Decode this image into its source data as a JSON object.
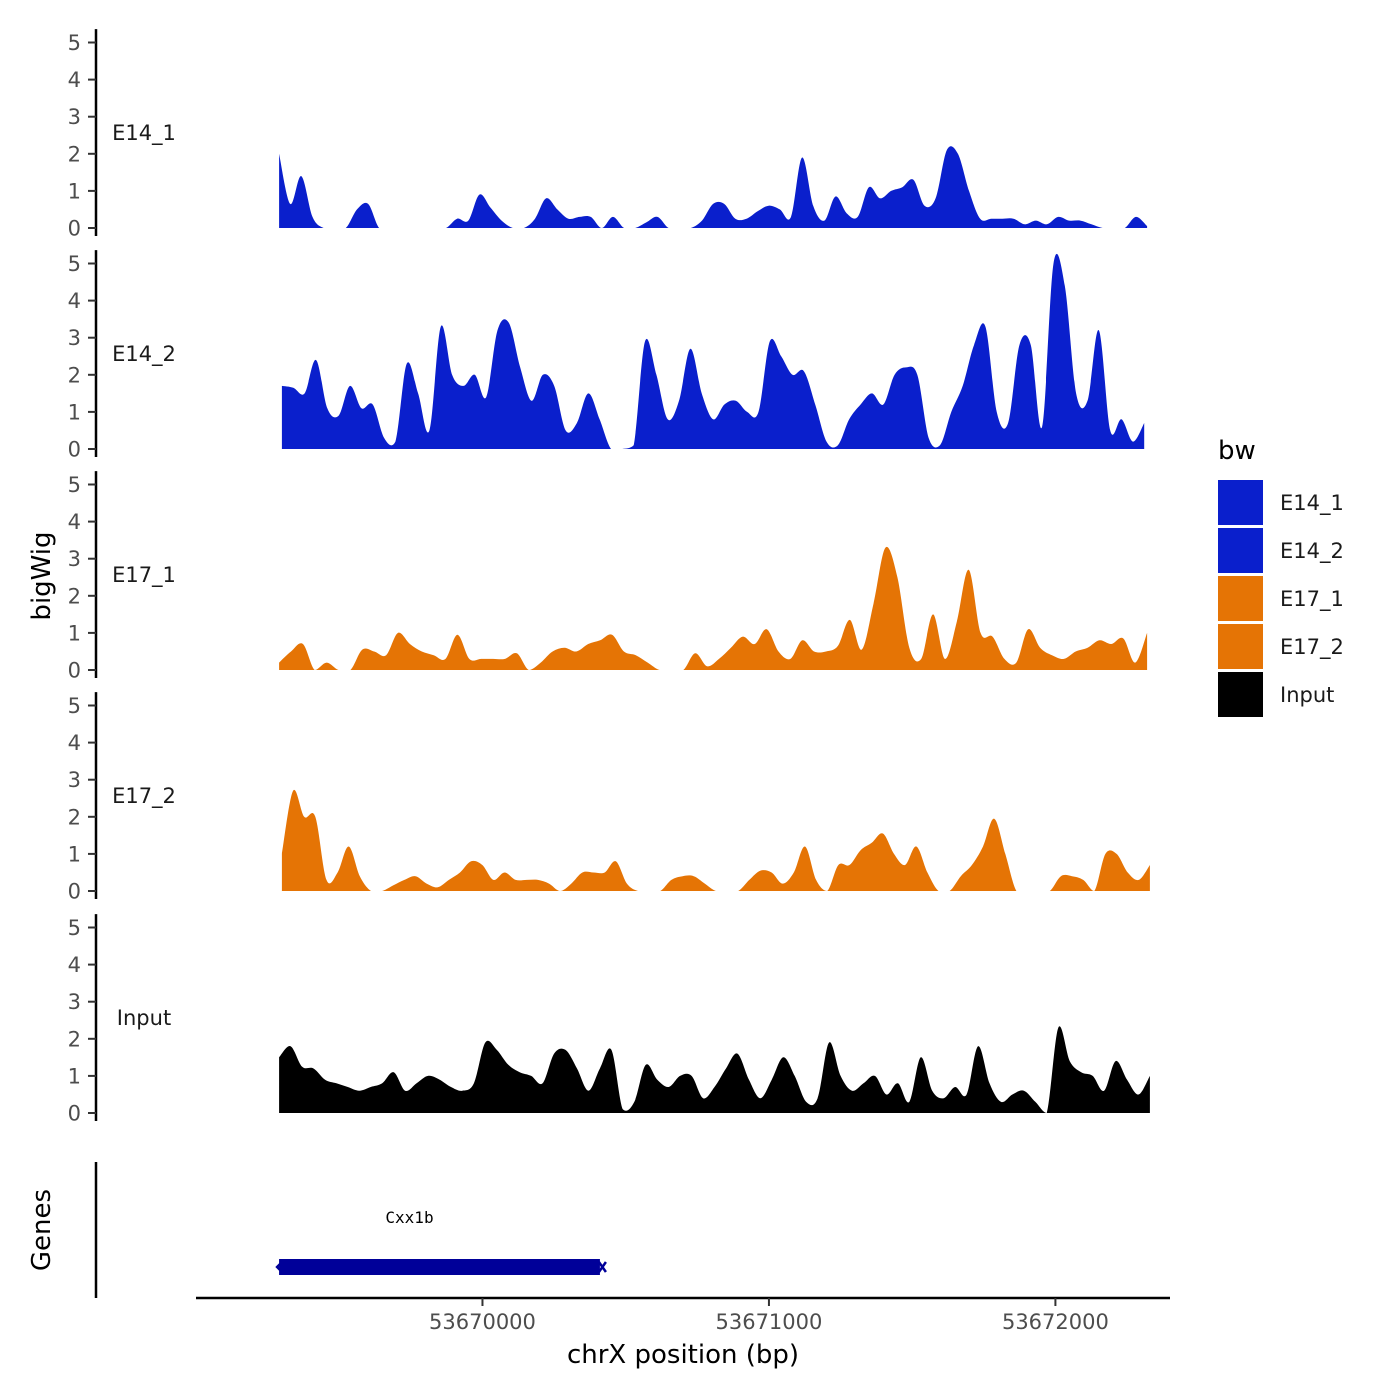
{
  "chart_data": {
    "type": "area",
    "y_axis_title": "bigWig",
    "x_axis_title": "chrX position (bp)",
    "genes_axis_title": "Genes",
    "y_ticks": [
      "0",
      "1",
      "2",
      "3",
      "4",
      "5"
    ],
    "ylim": [
      0,
      5.2
    ],
    "xlim": [
      53669000,
      53672400
    ],
    "x_ticks": [
      {
        "value": 53670000,
        "label": "53670000"
      },
      {
        "value": 53671000,
        "label": "53671000"
      },
      {
        "value": 53672000,
        "label": "53672000"
      }
    ],
    "legend": {
      "title": "bw",
      "entries": [
        {
          "label": "E14_1",
          "color": "#0A1FCC"
        },
        {
          "label": "E14_2",
          "color": "#0A1FCC"
        },
        {
          "label": "E17_1",
          "color": "#E57405"
        },
        {
          "label": "E17_2",
          "color": "#E57405"
        },
        {
          "label": "Input",
          "color": "#000000"
        }
      ]
    },
    "tracks": [
      {
        "name": "E14_1",
        "color": "#0A1FCC",
        "x_start": 53669290,
        "x_end": 53672320,
        "values": [
          2.0,
          0.65,
          1.4,
          0.3,
          0,
          0,
          0,
          0.5,
          0.65,
          0,
          0,
          0,
          0,
          0,
          0,
          0,
          0.25,
          0.2,
          0.9,
          0.55,
          0.2,
          0,
          0,
          0.25,
          0.8,
          0.5,
          0.25,
          0.3,
          0.3,
          0,
          0.3,
          0,
          0,
          0.15,
          0.3,
          0,
          0,
          0,
          0.2,
          0.65,
          0.65,
          0.25,
          0.25,
          0.45,
          0.6,
          0.5,
          0.3,
          1.9,
          0.6,
          0.2,
          0.85,
          0.4,
          0.3,
          1.1,
          0.8,
          1.0,
          1.1,
          1.3,
          0.6,
          0.8,
          2.1,
          2.0,
          1.0,
          0.25,
          0.25,
          0.25,
          0.25,
          0.1,
          0.2,
          0.1,
          0.3,
          0.2,
          0.2,
          0.1,
          0,
          0,
          0,
          0.3,
          0.05
        ]
      },
      {
        "name": "E14_2",
        "color": "#0A1FCC",
        "x_start": 53669300,
        "x_end": 53672310,
        "values": [
          1.7,
          1.65,
          1.5,
          2.4,
          1.1,
          0.9,
          1.7,
          1.1,
          1.2,
          0.3,
          0.2,
          2.3,
          1.5,
          0.5,
          3.3,
          2.0,
          1.7,
          2.0,
          1.4,
          3.2,
          3.4,
          2.2,
          1.3,
          2.0,
          1.7,
          0.5,
          0.7,
          1.5,
          0.8,
          0,
          0,
          0.1,
          2.9,
          2.0,
          0.8,
          1.3,
          2.7,
          1.5,
          0.8,
          1.2,
          1.3,
          1.0,
          1.0,
          2.9,
          2.5,
          2.0,
          2.1,
          1.2,
          0.2,
          0.1,
          0.8,
          1.2,
          1.5,
          1.2,
          2.0,
          2.2,
          2.0,
          0.3,
          0.1,
          1.0,
          1.7,
          2.8,
          3.3,
          1.0,
          0.7,
          2.8,
          2.8,
          0.6,
          5.0,
          4.4,
          1.5,
          1.3,
          3.2,
          0.5,
          0.8,
          0.2,
          0.7
        ]
      },
      {
        "name": "E17_1",
        "color": "#E57405",
        "x_start": 53669290,
        "x_end": 53672320,
        "values": [
          0.2,
          0.5,
          0.7,
          0,
          0.2,
          0,
          0,
          0.55,
          0.5,
          0.4,
          1.0,
          0.7,
          0.5,
          0.4,
          0.3,
          0.95,
          0.3,
          0.3,
          0.3,
          0.3,
          0.45,
          0,
          0.2,
          0.5,
          0.6,
          0.5,
          0.7,
          0.8,
          0.95,
          0.5,
          0.4,
          0.2,
          0,
          0,
          0,
          0.45,
          0.1,
          0.3,
          0.6,
          0.9,
          0.7,
          1.1,
          0.5,
          0.3,
          0.8,
          0.5,
          0.5,
          0.65,
          1.35,
          0.55,
          1.8,
          3.3,
          2.5,
          0.6,
          0.3,
          1.5,
          0.3,
          1.3,
          2.7,
          1.0,
          0.9,
          0.3,
          0.2,
          1.1,
          0.6,
          0.4,
          0.3,
          0.5,
          0.6,
          0.8,
          0.7,
          0.85,
          0.2,
          1.0
        ]
      },
      {
        "name": "E17_2",
        "color": "#E57405",
        "x_start": 53669300,
        "x_end": 53672330,
        "values": [
          1.0,
          2.7,
          2.0,
          2.0,
          0.3,
          0.5,
          1.2,
          0.4,
          0,
          0,
          0.15,
          0.3,
          0.4,
          0.2,
          0.1,
          0.3,
          0.5,
          0.8,
          0.7,
          0.3,
          0.5,
          0.3,
          0.3,
          0.3,
          0.2,
          0,
          0.2,
          0.5,
          0.5,
          0.5,
          0.8,
          0.2,
          0,
          0,
          0,
          0.3,
          0.4,
          0.4,
          0.2,
          0,
          0,
          0,
          0.3,
          0.55,
          0.5,
          0.2,
          0.5,
          1.2,
          0.3,
          0,
          0.7,
          0.7,
          1.1,
          1.3,
          1.55,
          1.0,
          0.7,
          1.2,
          0.5,
          0,
          0,
          0.4,
          0.7,
          1.2,
          1.95,
          1.0,
          0,
          0,
          0,
          0,
          0.4,
          0.4,
          0.3,
          0,
          1.0,
          1.0,
          0.5,
          0.3,
          0.7
        ]
      },
      {
        "name": "Input",
        "color": "#000000",
        "x_start": 53669290,
        "x_end": 53672330,
        "values": [
          1.5,
          1.8,
          1.25,
          1.2,
          0.9,
          0.8,
          0.7,
          0.6,
          0.7,
          0.8,
          1.1,
          0.6,
          0.8,
          1.0,
          0.9,
          0.7,
          0.6,
          0.8,
          1.9,
          1.7,
          1.3,
          1.1,
          1.0,
          0.8,
          1.6,
          1.7,
          1.2,
          0.6,
          1.2,
          1.7,
          0.1,
          0.3,
          1.3,
          0.9,
          0.7,
          1.0,
          1.0,
          0.4,
          0.7,
          1.2,
          1.6,
          0.9,
          0.4,
          0.9,
          1.5,
          1.0,
          0.3,
          0.4,
          1.9,
          1.0,
          0.6,
          0.8,
          1.0,
          0.5,
          0.8,
          0.3,
          1.5,
          0.6,
          0.4,
          0.7,
          0.5,
          1.8,
          0.8,
          0.3,
          0.5,
          0.6,
          0.3,
          0,
          2.3,
          1.4,
          1.1,
          1.0,
          0.6,
          1.4,
          0.9,
          0.5,
          1.0
        ]
      }
    ],
    "genes": [
      {
        "name": "Cxx1b",
        "start": 53669290,
        "end": 53670410,
        "strand": "-",
        "color": "#000099"
      }
    ]
  }
}
